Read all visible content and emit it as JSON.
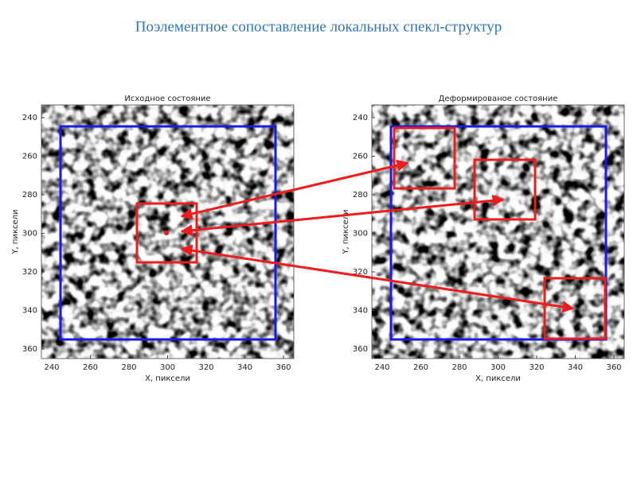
{
  "title": "Поэлементное сопоставление локальных спекл-структур",
  "panels": [
    {
      "title": "Исходное состояние",
      "xlabel": "X, пиксели",
      "ylabel": "Y, пиксели",
      "xticks": [
        240,
        260,
        280,
        300,
        320,
        340,
        360
      ],
      "yticks": [
        240,
        260,
        280,
        300,
        320,
        340,
        360
      ]
    },
    {
      "title": "Деформированое состояние",
      "xlabel": "X, пиксели",
      "ylabel": "Y, пиксели",
      "xticks": [
        240,
        260,
        280,
        300,
        320,
        340,
        360
      ],
      "yticks": [
        240,
        260,
        280,
        300,
        320,
        340,
        360
      ]
    }
  ]
}
